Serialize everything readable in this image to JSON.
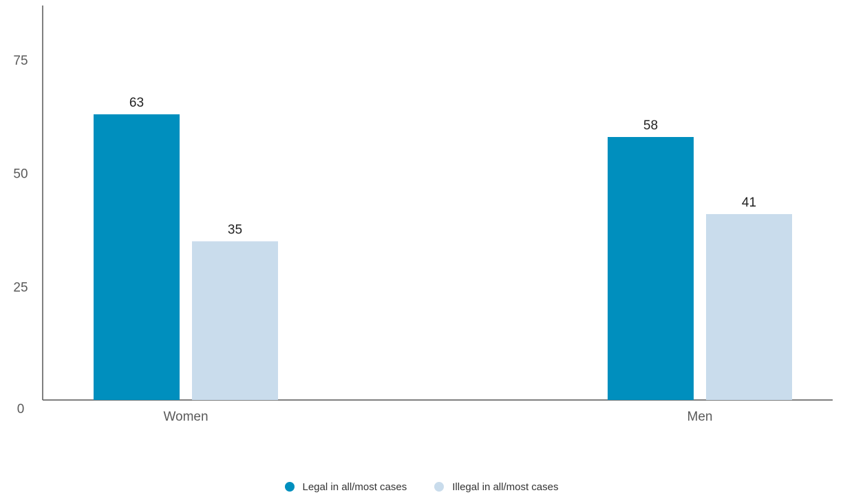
{
  "chart_data": {
    "type": "bar",
    "categories": [
      "Women",
      "Men"
    ],
    "series": [
      {
        "name": "Legal in all/most cases",
        "values": [
          63,
          58
        ],
        "color": "#008fbe"
      },
      {
        "name": "Illegal in all/most cases",
        "values": [
          35,
          41
        ],
        "color": "#c9dcec"
      }
    ],
    "yticks": [
      0,
      25,
      50,
      75
    ],
    "ylim": [
      0,
      87
    ],
    "title": "",
    "xlabel": "",
    "ylabel": "",
    "legend_position": "bottom-center",
    "grid": false,
    "data_labels": true
  }
}
